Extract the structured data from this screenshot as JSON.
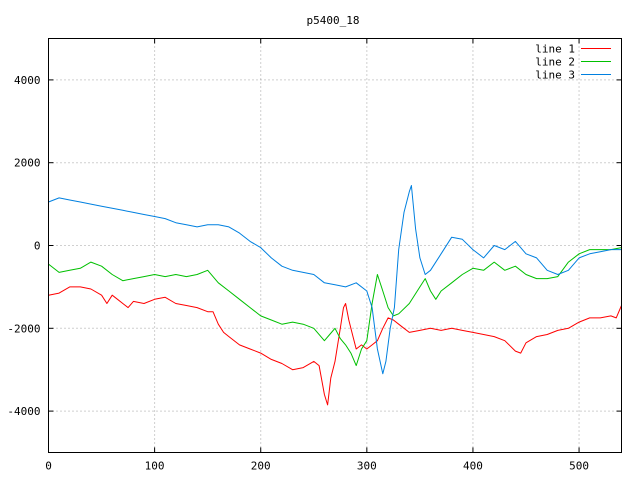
{
  "chart_data": {
    "type": "line",
    "title": "p5400_18",
    "xlabel": "",
    "ylabel": "",
    "xlim": [
      0,
      540
    ],
    "ylim": [
      -5000,
      5000
    ],
    "xticks": [
      0,
      100,
      200,
      300,
      400,
      500
    ],
    "yticks": [
      -4000,
      -2000,
      0,
      2000,
      4000
    ],
    "grid": true,
    "legend_position": "top-right",
    "series": [
      {
        "name": "line 1",
        "color": "#ff0000",
        "x": [
          0,
          10,
          20,
          30,
          40,
          50,
          55,
          60,
          65,
          70,
          75,
          80,
          90,
          100,
          110,
          120,
          130,
          140,
          150,
          155,
          160,
          165,
          170,
          180,
          190,
          200,
          210,
          220,
          230,
          240,
          250,
          255,
          260,
          263,
          266,
          270,
          275,
          278,
          280,
          283,
          287,
          290,
          295,
          300,
          305,
          310,
          315,
          320,
          325,
          330,
          335,
          340,
          350,
          360,
          370,
          380,
          390,
          400,
          410,
          420,
          430,
          440,
          445,
          450,
          460,
          470,
          480,
          490,
          500,
          510,
          520,
          530,
          535,
          540
        ],
        "y": [
          -1200,
          -1150,
          -1000,
          -1000,
          -1050,
          -1200,
          -1400,
          -1200,
          -1300,
          -1400,
          -1500,
          -1350,
          -1400,
          -1300,
          -1250,
          -1400,
          -1450,
          -1500,
          -1600,
          -1600,
          -1900,
          -2100,
          -2200,
          -2400,
          -2500,
          -2600,
          -2750,
          -2850,
          -3000,
          -2950,
          -2800,
          -2900,
          -3600,
          -3850,
          -3200,
          -2800,
          -2000,
          -1500,
          -1400,
          -1800,
          -2200,
          -2500,
          -2400,
          -2500,
          -2400,
          -2300,
          -2000,
          -1750,
          -1800,
          -1900,
          -2000,
          -2100,
          -2050,
          -2000,
          -2050,
          -2000,
          -2050,
          -2100,
          -2150,
          -2200,
          -2300,
          -2550,
          -2600,
          -2350,
          -2200,
          -2150,
          -2050,
          -2000,
          -1850,
          -1750,
          -1750,
          -1700,
          -1750,
          -1450
        ]
      },
      {
        "name": "line 2",
        "color": "#00c000",
        "x": [
          0,
          10,
          20,
          30,
          40,
          50,
          60,
          70,
          80,
          90,
          100,
          110,
          120,
          130,
          140,
          150,
          160,
          170,
          180,
          190,
          200,
          210,
          220,
          230,
          240,
          250,
          260,
          265,
          270,
          275,
          280,
          285,
          290,
          295,
          300,
          305,
          310,
          315,
          320,
          325,
          330,
          340,
          350,
          355,
          360,
          365,
          370,
          380,
          390,
          400,
          410,
          420,
          430,
          440,
          450,
          460,
          470,
          480,
          490,
          500,
          510,
          520,
          530,
          540
        ],
        "y": [
          -450,
          -650,
          -600,
          -550,
          -400,
          -500,
          -700,
          -850,
          -800,
          -750,
          -700,
          -750,
          -700,
          -750,
          -700,
          -600,
          -900,
          -1100,
          -1300,
          -1500,
          -1700,
          -1800,
          -1900,
          -1850,
          -1900,
          -2000,
          -2300,
          -2150,
          -2000,
          -2250,
          -2400,
          -2600,
          -2900,
          -2500,
          -2300,
          -1400,
          -700,
          -1100,
          -1500,
          -1700,
          -1650,
          -1400,
          -1000,
          -800,
          -1100,
          -1300,
          -1100,
          -900,
          -700,
          -550,
          -600,
          -400,
          -600,
          -500,
          -700,
          -800,
          -800,
          -750,
          -400,
          -200,
          -100,
          -100,
          -100,
          -50
        ]
      },
      {
        "name": "line 3",
        "color": "#0080e0",
        "x": [
          0,
          10,
          20,
          30,
          40,
          50,
          60,
          70,
          80,
          90,
          100,
          110,
          120,
          130,
          140,
          150,
          160,
          170,
          180,
          190,
          200,
          210,
          220,
          230,
          240,
          250,
          260,
          270,
          280,
          290,
          300,
          305,
          310,
          315,
          318,
          322,
          326,
          330,
          335,
          340,
          342,
          346,
          350,
          355,
          360,
          370,
          380,
          390,
          400,
          410,
          420,
          430,
          440,
          450,
          460,
          470,
          480,
          490,
          500,
          510,
          520,
          530,
          540
        ],
        "y": [
          1050,
          1150,
          1100,
          1050,
          1000,
          950,
          900,
          850,
          800,
          750,
          700,
          650,
          550,
          500,
          450,
          500,
          500,
          450,
          300,
          100,
          -50,
          -300,
          -500,
          -600,
          -650,
          -700,
          -900,
          -950,
          -1000,
          -900,
          -1100,
          -1500,
          -2500,
          -3100,
          -2800,
          -2000,
          -1500,
          -100,
          800,
          1300,
          1450,
          400,
          -300,
          -700,
          -600,
          -200,
          200,
          150,
          -100,
          -300,
          0,
          -100,
          100,
          -200,
          -300,
          -600,
          -700,
          -600,
          -300,
          -200,
          -150,
          -100,
          -100
        ]
      }
    ]
  }
}
